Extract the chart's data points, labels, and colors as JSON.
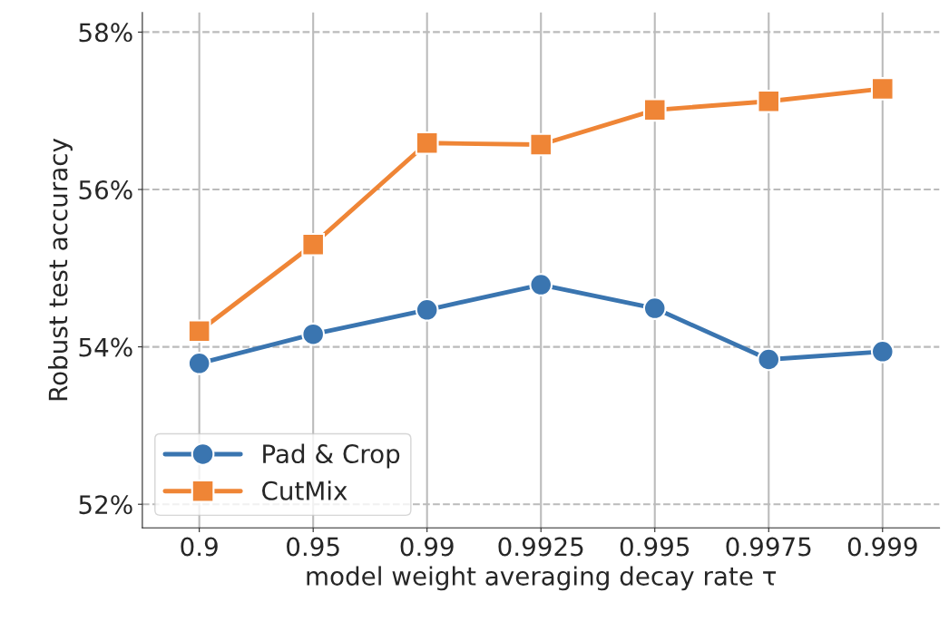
{
  "chart_data": {
    "type": "line",
    "xlabel": "model weight averaging decay rate τ",
    "ylabel": "Robust test accuracy",
    "categories": [
      "0.9",
      "0.95",
      "0.99",
      "0.9925",
      "0.995",
      "0.9975",
      "0.999"
    ],
    "series": [
      {
        "name": "Pad & Crop",
        "color": "#3a75b0",
        "marker": "circle",
        "values": [
          53.79,
          54.16,
          54.47,
          54.79,
          54.49,
          53.84,
          53.94
        ]
      },
      {
        "name": "CutMix",
        "color": "#ef8536",
        "marker": "square",
        "values": [
          54.2,
          55.3,
          56.59,
          56.57,
          57.01,
          57.12,
          57.28
        ]
      }
    ],
    "ylim": [
      51.7,
      58.25
    ],
    "yticks": [
      {
        "value": 52,
        "label": "52%"
      },
      {
        "value": 54,
        "label": "54%"
      },
      {
        "value": 56,
        "label": "56%"
      },
      {
        "value": 58,
        "label": "58%"
      }
    ],
    "grid": true,
    "legend": "bottom left",
    "line_style": "solid"
  }
}
